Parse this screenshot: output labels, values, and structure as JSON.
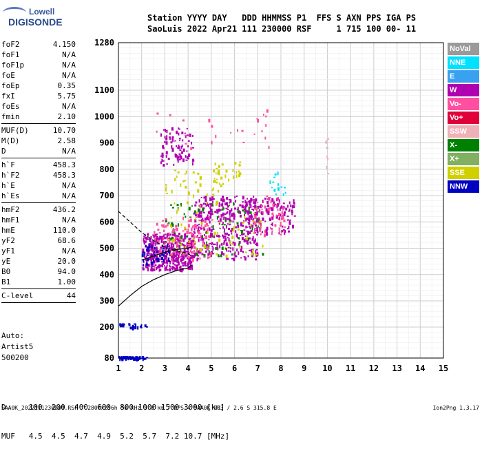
{
  "logo": {
    "line1": "Lowell",
    "line2": "DIGISONDE"
  },
  "header": {
    "line1": "Station YYYY DAY   DDD HHMMSS P1  FFS S AXN PPS IGA PS",
    "line2": "SaoLuis 2022 Apr21 111 230000 RSF     1 715 100 00- 11"
  },
  "params": [
    {
      "label": "foF2",
      "value": "4.150"
    },
    {
      "label": "foF1",
      "value": "N/A"
    },
    {
      "label": "foF1p",
      "value": "N/A"
    },
    {
      "label": "foE",
      "value": "N/A"
    },
    {
      "label": "foEp",
      "value": "0.35"
    },
    {
      "label": "fxI",
      "value": "5.75"
    },
    {
      "label": "foEs",
      "value": "N/A"
    },
    {
      "label": "fmin",
      "value": "2.10"
    },
    {
      "sep": true
    },
    {
      "label": "MUF(D)",
      "value": "10.70"
    },
    {
      "label": "M(D)",
      "value": "2.58"
    },
    {
      "label": "D",
      "value": "N/A"
    },
    {
      "sep": true
    },
    {
      "label": "h`F",
      "value": "458.3"
    },
    {
      "label": "h`F2",
      "value": "458.3"
    },
    {
      "label": "h`E",
      "value": "N/A"
    },
    {
      "label": "h`Es",
      "value": "N/A"
    },
    {
      "sep": true
    },
    {
      "label": "hmF2",
      "value": "436.2"
    },
    {
      "label": "hmF1",
      "value": "N/A"
    },
    {
      "label": "hmE",
      "value": "110.0"
    },
    {
      "label": "yF2",
      "value": "68.6"
    },
    {
      "label": "yF1",
      "value": "N/A"
    },
    {
      "label": "yE",
      "value": "20.0"
    },
    {
      "label": "B0",
      "value": "94.0"
    },
    {
      "label": "B1",
      "value": "1.00"
    },
    {
      "sep": true
    },
    {
      "label": "C-level",
      "value": "44"
    },
    {
      "sep": true
    }
  ],
  "auto": {
    "line1": "Auto:",
    "line2": "Artist5",
    "line3": "500200"
  },
  "legend": [
    {
      "label": "NoVal",
      "color": "#9a9a9a"
    },
    {
      "label": "NNE",
      "color": "#00e0ff"
    },
    {
      "label": "E",
      "color": "#3aa0f0"
    },
    {
      "label": "W",
      "color": "#b000b0"
    },
    {
      "label": "Vo-",
      "color": "#ff4fa0"
    },
    {
      "label": "Vo+",
      "color": "#e0003a"
    },
    {
      "label": "SSW",
      "color": "#f0b0b8"
    },
    {
      "label": "X-",
      "color": "#008000"
    },
    {
      "label": "X+",
      "color": "#80b060"
    },
    {
      "label": "SSE",
      "color": "#d0d000"
    },
    {
      "label": "NNW",
      "color": "#0000c0"
    }
  ],
  "bottom": {
    "line1": "D     100  200  400  600  800 1000 1500 3000 [km]",
    "line2": "MUF   4.5  4.5  4.7  4.9  5.2  5.7  7.2 10.7 [MHz]"
  },
  "footer": "SAA0K_2022111230000.RSF / 280fx256h 50 kHz 5.0 km / DPS-4 SAA0K 903 / 2.6 S 315.8 E",
  "version": "Ion2Png 1.3.17",
  "chart_data": {
    "type": "scatter",
    "x_ticks": [
      "1",
      "2",
      "3",
      "4",
      "5",
      "6",
      "7",
      "8",
      "9",
      "10",
      "11",
      "12",
      "13",
      "14",
      "15"
    ],
    "y_ticks": [
      "80",
      "200",
      "300",
      "400",
      "500",
      "600",
      "700",
      "800",
      "900",
      "1000",
      "1100",
      "1280"
    ],
    "xlim": [
      1,
      15
    ],
    "y_range_km": [
      80,
      1280
    ],
    "grid": true,
    "profile_curve": [
      [
        1.0,
        280
      ],
      [
        1.5,
        320
      ],
      [
        2.0,
        355
      ],
      [
        2.5,
        380
      ],
      [
        3.0,
        400
      ],
      [
        3.5,
        415
      ],
      [
        4.0,
        425
      ],
      [
        4.15,
        436
      ]
    ],
    "dashed_curve": [
      [
        1.0,
        640
      ],
      [
        1.5,
        600
      ],
      [
        2.0,
        560
      ],
      [
        2.5,
        530
      ],
      [
        3.0,
        505
      ],
      [
        3.5,
        490
      ],
      [
        4.0,
        480
      ],
      [
        4.15,
        470
      ]
    ],
    "trace_curve": [
      [
        2.0,
        455
      ],
      [
        2.5,
        470
      ],
      [
        3.0,
        485
      ],
      [
        3.5,
        495
      ],
      [
        4.0,
        500
      ],
      [
        4.15,
        505
      ]
    ],
    "echo_clusters": [
      {
        "x": [
          2.0,
          4.2
        ],
        "y": [
          420,
          560
        ],
        "color": "#b000b0",
        "n": 420
      },
      {
        "x": [
          4.2,
          7.0
        ],
        "y": [
          460,
          700
        ],
        "color": "#b000b0",
        "n": 360
      },
      {
        "x": [
          3.0,
          7.2
        ],
        "y": [
          470,
          680
        ],
        "color": "#008000",
        "n": 90
      },
      {
        "x": [
          3.0,
          7.2
        ],
        "y": [
          470,
          680
        ],
        "color": "#d0d000",
        "n": 70
      },
      {
        "x": [
          2.5,
          5.0
        ],
        "y": [
          460,
          620
        ],
        "color": "#ff4fa0",
        "n": 130
      },
      {
        "x": [
          2.0,
          3.2
        ],
        "y": [
          440,
          520
        ],
        "color": "#0000c0",
        "n": 50
      },
      {
        "x": [
          6.5,
          8.6
        ],
        "y": [
          560,
          700
        ],
        "color": "#b000b0",
        "n": 120
      },
      {
        "x": [
          6.8,
          8.2
        ],
        "y": [
          550,
          700
        ],
        "color": "#ff4fa0",
        "n": 60
      },
      {
        "x": [
          2.8,
          4.2
        ],
        "y": [
          820,
          960
        ],
        "color": "#b000b0",
        "n": 90
      },
      {
        "x": [
          3.0,
          5.5
        ],
        "y": [
          700,
          800
        ],
        "color": "#d0d000",
        "n": 40
      },
      {
        "x": [
          5.0,
          6.3
        ],
        "y": [
          760,
          830
        ],
        "color": "#d0d000",
        "n": 25
      },
      {
        "x": [
          2.5,
          7.5
        ],
        "y": [
          880,
          1030
        ],
        "color": "#ff4fa0",
        "n": 25
      },
      {
        "x": [
          1.0,
          2.2
        ],
        "y": [
          80,
          88
        ],
        "color": "#0000c0",
        "n": 60
      },
      {
        "x": [
          1.0,
          2.2
        ],
        "y": [
          200,
          215
        ],
        "color": "#0000c0",
        "n": 25
      },
      {
        "x": [
          7.5,
          8.2
        ],
        "y": [
          700,
          800
        ],
        "color": "#00e0ff",
        "n": 15
      },
      {
        "x": [
          9.9,
          10.0
        ],
        "y": [
          780,
          920
        ],
        "color": "#f0b0b8",
        "n": 8
      }
    ]
  }
}
